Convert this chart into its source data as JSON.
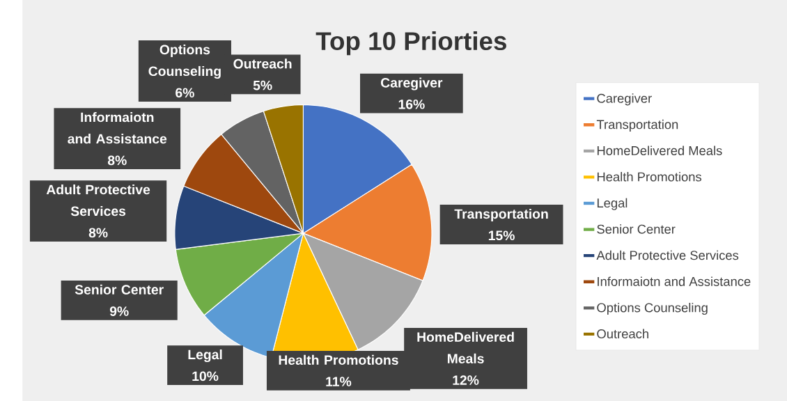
{
  "chart_data": {
    "type": "pie",
    "title": "Top 10 Priorties",
    "categories": [
      "Caregiver",
      "Transportation",
      "HomeDelivered Meals",
      "Health Promotions",
      "Legal",
      "Senior Center",
      "Adult Protective Services",
      "Informaiotn and Assistance",
      "Options Counseling",
      "Outreach"
    ],
    "values": [
      16,
      15,
      12,
      11,
      10,
      9,
      8,
      8,
      6,
      5
    ],
    "value_labels": [
      "16%",
      "15%",
      "12%",
      "11%",
      "10%",
      "9%",
      "8%",
      "8%",
      "6%",
      "5%"
    ],
    "colors": [
      "#4472c4",
      "#ed7d31",
      "#a5a5a5",
      "#ffc000",
      "#5b9bd5",
      "#70ad47",
      "#264478",
      "#9e480e",
      "#636363",
      "#997300"
    ],
    "legend": "right"
  }
}
